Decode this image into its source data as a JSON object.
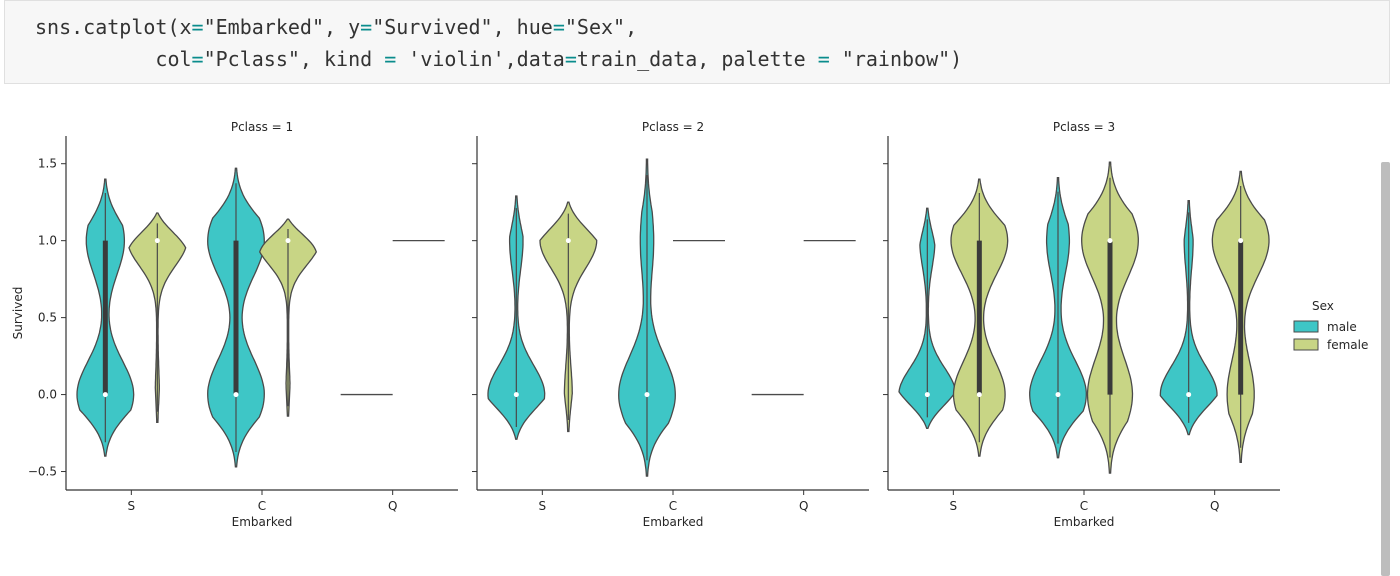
{
  "code": {
    "line1": {
      "a": "sns.catplot(x",
      "eq": "=",
      "b": "\"Embarked\", y",
      "c": "\"Survived\", hue",
      "d": "\"Sex\","
    },
    "line2": {
      "a": "col",
      "b": "\"Pclass\", kind ",
      "c": " 'violin',data",
      "d": "train_data, palette ",
      "e": " \"rainbow\")"
    }
  },
  "colors": {
    "male": "#3ec6c6",
    "female": "#c8d585",
    "outline": "#4a4a4a",
    "axis": "#333333"
  },
  "chart_data": {
    "type": "violin",
    "ylabel": "Survived",
    "xlabel": "Embarked",
    "categories": [
      "S",
      "C",
      "Q"
    ],
    "ylim": [
      -0.62,
      1.68
    ],
    "yticks": [
      -0.5,
      0.0,
      0.5,
      1.0,
      1.5
    ],
    "ytick_labels": [
      "−0.5",
      "0.0",
      "0.5",
      "1.0",
      "1.5"
    ],
    "legend": {
      "title": "Sex",
      "entries": [
        "male",
        "female"
      ],
      "placement": "right"
    },
    "panels": [
      {
        "title": "Pclass = 1",
        "groups": [
          {
            "category": "S",
            "sex": "male",
            "min": -0.4,
            "max": 1.4,
            "median": 0.0,
            "q1": 0.0,
            "q3": 1.0,
            "modes": [
              [
                0.0,
                0.15
              ],
              [
                1.0,
                0.1
              ]
            ]
          },
          {
            "category": "S",
            "sex": "female",
            "min": -0.18,
            "max": 1.18,
            "median": 1.0,
            "q1": 1.0,
            "q3": 1.0,
            "modes": [
              [
                1.0,
                1.0
              ],
              [
                0.0,
                0.05
              ]
            ]
          },
          {
            "category": "C",
            "sex": "male",
            "min": -0.47,
            "max": 1.47,
            "median": 0.0,
            "q1": 0.0,
            "q3": 1.0,
            "modes": [
              [
                0.0,
                0.13
              ],
              [
                1.0,
                0.13
              ]
            ]
          },
          {
            "category": "C",
            "sex": "female",
            "min": -0.14,
            "max": 1.14,
            "median": 1.0,
            "q1": 1.0,
            "q3": 1.0,
            "modes": [
              [
                1.0,
                1.0
              ],
              [
                0.0,
                0.05
              ]
            ]
          },
          {
            "category": "Q",
            "sex": "male",
            "value": 0.0
          },
          {
            "category": "Q",
            "sex": "female",
            "value": 1.0
          }
        ]
      },
      {
        "title": "Pclass = 2",
        "groups": [
          {
            "category": "S",
            "sex": "male",
            "min": -0.29,
            "max": 1.29,
            "median": 0.0,
            "q1": 0.0,
            "q3": 0.0,
            "modes": [
              [
                0.0,
                1.0
              ],
              [
                1.0,
                0.22
              ]
            ]
          },
          {
            "category": "S",
            "sex": "female",
            "min": -0.24,
            "max": 1.25,
            "median": 1.0,
            "q1": 1.0,
            "q3": 1.0,
            "modes": [
              [
                1.0,
                1.0
              ],
              [
                0.0,
                0.12
              ]
            ]
          },
          {
            "category": "C",
            "sex": "male",
            "min": -0.53,
            "max": 1.53,
            "median": 0.0,
            "q1": 0.0,
            "q3": 0.0,
            "modes": [
              [
                0.0,
                1.0
              ],
              [
                1.0,
                0.22
              ]
            ]
          },
          {
            "category": "C",
            "sex": "female",
            "value": 1.0
          },
          {
            "category": "Q",
            "sex": "male",
            "value": 0.0
          },
          {
            "category": "Q",
            "sex": "female",
            "value": 1.0
          }
        ]
      },
      {
        "title": "Pclass = 3",
        "groups": [
          {
            "category": "S",
            "sex": "male",
            "min": -0.22,
            "max": 1.21,
            "median": 0.0,
            "q1": 0.0,
            "q3": 0.0,
            "modes": [
              [
                0.0,
                1.0
              ],
              [
                1.0,
                0.25
              ]
            ]
          },
          {
            "category": "S",
            "sex": "female",
            "min": -0.4,
            "max": 1.4,
            "median": 0.0,
            "q1": 0.0,
            "q3": 1.0,
            "modes": [
              [
                0.0,
                0.5
              ],
              [
                1.0,
                0.55
              ]
            ]
          },
          {
            "category": "C",
            "sex": "male",
            "min": -0.41,
            "max": 1.41,
            "median": 0.0,
            "q1": 0.0,
            "q3": 0.0,
            "modes": [
              [
                0.0,
                0.9
              ],
              [
                1.0,
                0.35
              ]
            ]
          },
          {
            "category": "C",
            "sex": "female",
            "min": -0.51,
            "max": 1.51,
            "median": 1.0,
            "q1": 0.0,
            "q3": 1.0,
            "modes": [
              [
                0.0,
                0.75
              ],
              [
                1.0,
                0.95
              ]
            ]
          },
          {
            "category": "Q",
            "sex": "male",
            "min": -0.26,
            "max": 1.26,
            "median": 0.0,
            "q1": 0.0,
            "q3": 0.0,
            "modes": [
              [
                0.0,
                1.0
              ],
              [
                1.0,
                0.14
              ]
            ]
          },
          {
            "category": "Q",
            "sex": "female",
            "min": -0.44,
            "max": 1.45,
            "median": 1.0,
            "q1": 0.0,
            "q3": 1.0,
            "modes": [
              [
                0.0,
                0.35
              ],
              [
                1.0,
                0.75
              ]
            ]
          }
        ]
      }
    ]
  }
}
